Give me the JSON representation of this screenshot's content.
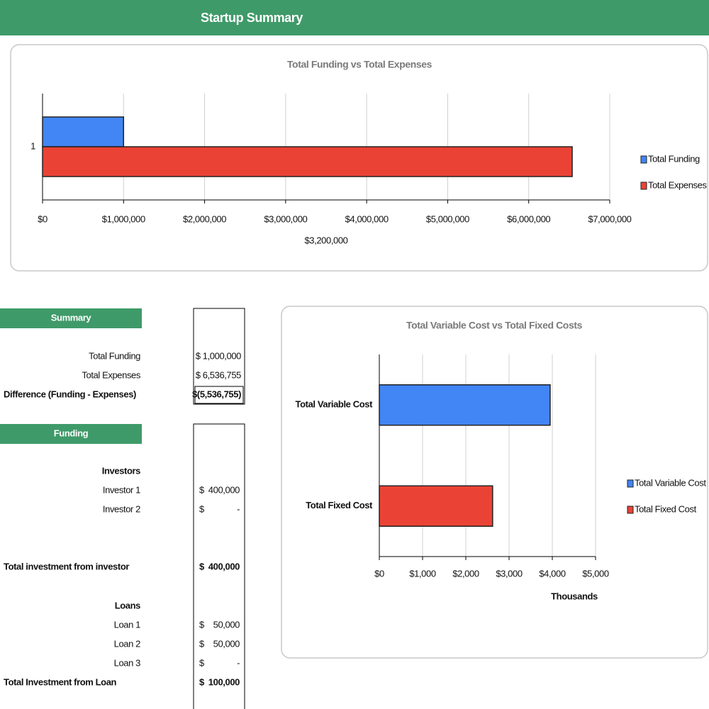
{
  "header": {
    "title": "Startup Summary"
  },
  "chart_data": [
    {
      "type": "bar",
      "orientation": "horizontal",
      "title": "Total Funding vs Total Expenses",
      "categories": [
        "1"
      ],
      "series": [
        {
          "name": "Total Funding",
          "color": "#4285f4",
          "values": [
            1000000
          ]
        },
        {
          "name": "Total Expenses",
          "color": "#ea4335",
          "values": [
            6536755
          ]
        }
      ],
      "xlim": [
        0,
        7000000
      ],
      "xticks": [
        {
          "value": 0,
          "label": "$0"
        },
        {
          "value": 1000000,
          "label": "$1,000,000"
        },
        {
          "value": 2000000,
          "label": "$2,000,000"
        },
        {
          "value": 3000000,
          "label": "$3,000,000"
        },
        {
          "value": 4000000,
          "label": "$4,000,000"
        },
        {
          "value": 5000000,
          "label": "$5,000,000"
        },
        {
          "value": 6000000,
          "label": "$6,000,000"
        },
        {
          "value": 7000000,
          "label": "$7,000,000"
        }
      ],
      "annotation": "$3,200,000",
      "grid": true,
      "legend": "right"
    },
    {
      "type": "bar",
      "orientation": "horizontal",
      "title": "Total Variable Cost vs Total Fixed Costs",
      "categories": [
        "Total Variable Cost",
        "Total Fixed Cost"
      ],
      "series": [
        {
          "name": "Total Variable Cost",
          "color": "#4285f4",
          "values": [
            3950,
            null
          ]
        },
        {
          "name": "Total Fixed Cost",
          "color": "#ea4335",
          "values": [
            null,
            2620
          ]
        }
      ],
      "xlim": [
        0,
        5000
      ],
      "xticks": [
        {
          "value": 0,
          "label": "$0"
        },
        {
          "value": 1000,
          "label": "$1,000"
        },
        {
          "value": 2000,
          "label": "$2,000"
        },
        {
          "value": 3000,
          "label": "$3,000"
        },
        {
          "value": 4000,
          "label": "$4,000"
        },
        {
          "value": 5000,
          "label": "$5,000"
        }
      ],
      "xlabel": "Thousands",
      "grid": true,
      "legend": "right"
    }
  ],
  "summary": {
    "title": "Summary",
    "rows": [
      [
        "Total Funding",
        "$ 1,000,000"
      ],
      [
        "Total Expenses",
        "$ 6,536,755"
      ],
      [
        "Difference (Funding - Expenses)",
        "$(5,536,755)"
      ]
    ]
  },
  "funding": {
    "title": "Funding",
    "rows": [
      [
        "Investors"
      ],
      [
        "Investor 1",
        "$",
        "400,000"
      ],
      [
        "Investor 2",
        "$",
        "-"
      ],
      [
        "Total investment from investor",
        "$",
        "400,000"
      ],
      [
        "Loans"
      ],
      [
        "Loan 1",
        "$",
        "50,000"
      ],
      [
        "Loan 2",
        "$",
        "50,000"
      ],
      [
        "Loan 3",
        "$",
        "-"
      ],
      [
        "Total Investment from Loan",
        "$",
        "100,000"
      ]
    ]
  }
}
